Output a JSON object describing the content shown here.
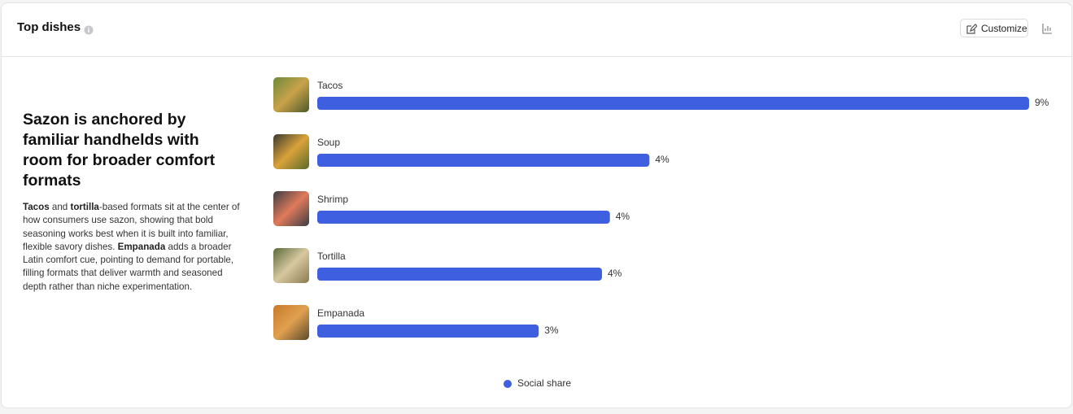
{
  "header": {
    "title": "Top dishes",
    "customize_button": "Customize"
  },
  "insight": {
    "title": "Sazon is anchored by familiar handhelds with room for broader comfort formats",
    "body": [
      {
        "text": "Tacos",
        "bold": true
      },
      {
        "text": " and ",
        "bold": false
      },
      {
        "text": "tortilla",
        "bold": true
      },
      {
        "text": "-based formats sit at the center of how consumers use sazon, showing that bold seasoning works best when it is built into familiar, flexible savory dishes. ",
        "bold": false
      },
      {
        "text": "Empanada",
        "bold": true
      },
      {
        "text": " adds a broader Latin comfort cue, pointing to demand for portable, filling formats that deliver warmth and seasoned depth rather than niche experimentation.",
        "bold": false
      }
    ]
  },
  "chart_data": {
    "type": "bar",
    "orientation": "horizontal",
    "categories": [
      "Tacos",
      "Soup",
      "Shrimp",
      "Tortilla",
      "Empanada"
    ],
    "series": [
      {
        "name": "Social share",
        "color": "#3d5fe0",
        "values": [
          9,
          4.2,
          3.7,
          3.6,
          2.8
        ],
        "value_labels": [
          "9%",
          "4%",
          "4%",
          "4%",
          "3%"
        ]
      }
    ],
    "legend": "bottom"
  }
}
